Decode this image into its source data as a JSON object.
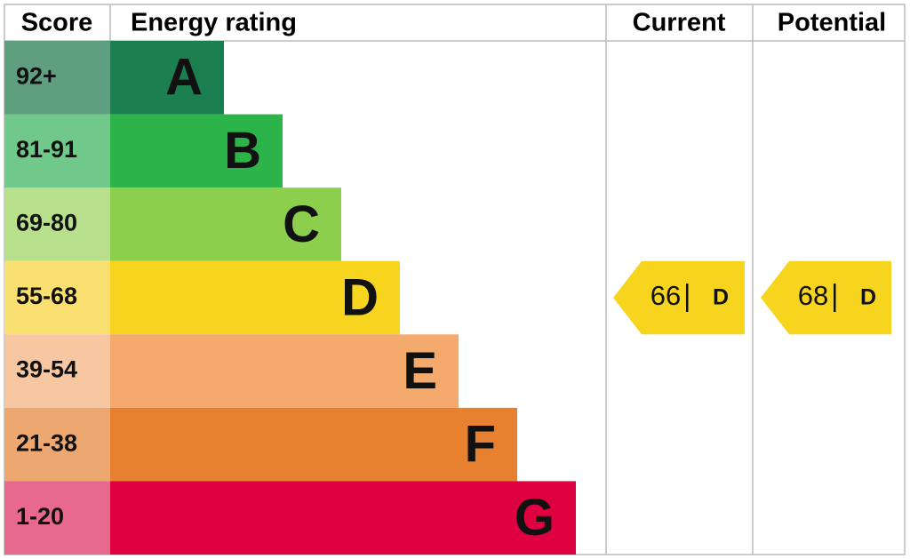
{
  "chart_data": {
    "type": "epc",
    "headers": [
      "Score",
      "Energy rating",
      "Current",
      "Potential"
    ],
    "bands": [
      {
        "score": "92+",
        "letter": "A",
        "color": "#1b7f4f",
        "score_color": "#5f9f80"
      },
      {
        "score": "81-91",
        "letter": "B",
        "color": "#2cb34a",
        "score_color": "#70c98a"
      },
      {
        "score": "69-80",
        "letter": "C",
        "color": "#8ccf4d",
        "score_color": "#b8e08c"
      },
      {
        "score": "55-68",
        "letter": "D",
        "color": "#f7d51f",
        "score_color": "#f9e070"
      },
      {
        "score": "39-54",
        "letter": "E",
        "color": "#f3aa6c",
        "score_color": "#f7c7a2"
      },
      {
        "score": "21-38",
        "letter": "F",
        "color": "#e8812f",
        "score_color": "#eda872"
      },
      {
        "score": "1-20",
        "letter": "G",
        "color": "#df0041",
        "score_color": "#e8698e"
      }
    ],
    "current": {
      "value": 66,
      "band": "D"
    },
    "potential": {
      "value": 68,
      "band": "D"
    }
  }
}
